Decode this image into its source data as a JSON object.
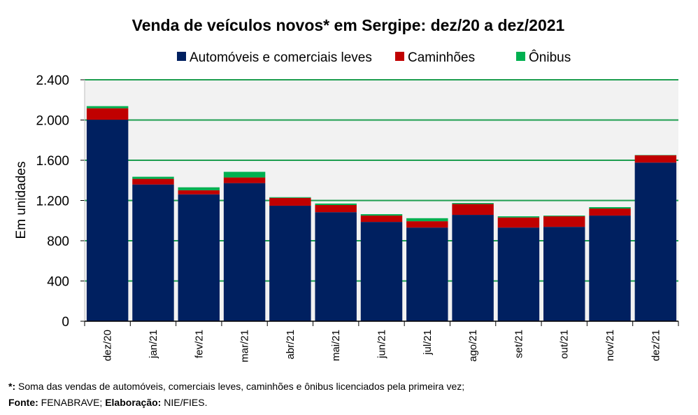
{
  "chart_data": {
    "type": "bar",
    "stacked": true,
    "title": "Venda de veículos novos* em Sergipe: dez/20 a dez/2021",
    "ylabel": "Em unidades",
    "xlabel": "",
    "ylim": [
      0,
      2400
    ],
    "yticks": [
      0,
      400,
      800,
      1200,
      1600,
      2000,
      2400
    ],
    "ytick_labels": [
      "0",
      "400",
      "800",
      "1.200",
      "1.600",
      "2.000",
      "2.400"
    ],
    "grid": true,
    "legend_position": "top",
    "categories": [
      "dez/20",
      "jan/21",
      "fev/21",
      "mar/21",
      "abr/21",
      "mai/21",
      "jun/21",
      "jul/21",
      "ago/21",
      "set/21",
      "out/21",
      "nov/21",
      "dez/21"
    ],
    "series": [
      {
        "name": "Automóveis e comerciais leves",
        "color": "#002060",
        "values": [
          2003,
          1359,
          1261,
          1373,
          1148,
          1084,
          987,
          931,
          1057,
          931,
          938,
          1050,
          1577
        ]
      },
      {
        "name": "Caminhões",
        "color": "#c00000",
        "values": [
          114,
          56,
          41,
          56,
          78,
          71,
          63,
          63,
          108,
          100,
          105,
          70,
          72
        ]
      },
      {
        "name": "Ônibus",
        "color": "#00b050",
        "values": [
          21,
          21,
          29,
          56,
          7,
          15,
          14,
          30,
          10,
          12,
          7,
          14,
          3
        ]
      }
    ]
  },
  "footnotes": {
    "note_mark": "*:",
    "note_text": " Soma das vendas de automóveis, comerciais leves, caminhões e ônibus licenciados pela primeira vez;",
    "source_label": "Fonte:",
    "source_text": " FENABRAVE; ",
    "elab_label": "Elaboração:",
    "elab_text": " NIE/FIES."
  }
}
